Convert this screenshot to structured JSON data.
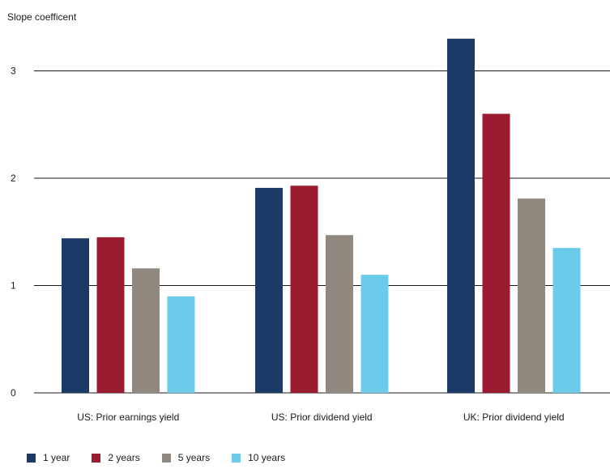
{
  "chart_data": {
    "type": "bar",
    "ylabel": "Slope coefficent",
    "xlabel": "",
    "ylim": [
      0,
      3.3
    ],
    "yticks": [
      0,
      1,
      2,
      3
    ],
    "grid": true,
    "legend_position": "bottom-left",
    "categories": [
      "US: Prior earnings yield",
      "US: Prior dividend yield",
      "UK: Prior dividend yield"
    ],
    "series": [
      {
        "name": "1 year",
        "color": "#1a3a67",
        "values": [
          1.44,
          1.91,
          3.3
        ]
      },
      {
        "name": "2 years",
        "color": "#9b1b30",
        "values": [
          1.45,
          1.93,
          2.6
        ]
      },
      {
        "name": "5 years",
        "color": "#918880",
        "values": [
          1.16,
          1.47,
          1.81
        ]
      },
      {
        "name": "10 years",
        "color": "#6ccbeb",
        "values": [
          0.9,
          1.1,
          1.35
        ]
      }
    ]
  }
}
